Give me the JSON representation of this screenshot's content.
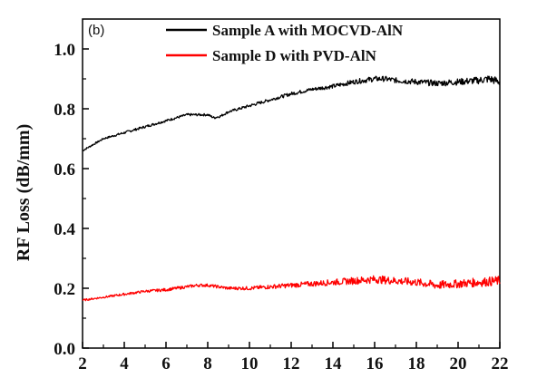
{
  "chart_data": {
    "type": "line",
    "panel_label": "(b)",
    "xlabel": "",
    "ylabel": "RF Loss (dB/mm)",
    "xlim": [
      2,
      22
    ],
    "ylim": [
      0,
      1.1
    ],
    "x_ticks": [
      2,
      4,
      6,
      8,
      10,
      12,
      14,
      16,
      18,
      20,
      22
    ],
    "x_tick_labels": [
      "2",
      "4",
      "6",
      "8",
      "10",
      "12",
      "14",
      "16",
      "18",
      "20",
      "22"
    ],
    "y_ticks": [
      0.0,
      0.2,
      0.4,
      0.6,
      0.8,
      1.0
    ],
    "y_tick_labels": [
      "0.0",
      "0.2",
      "0.4",
      "0.6",
      "0.8",
      "1.0"
    ],
    "legend_position": "top-right",
    "grid": false,
    "series": [
      {
        "name": "Sample A with MOCVD-AlN",
        "color": "#000000",
        "x": [
          2,
          3,
          4,
          5,
          6,
          6.5,
          7,
          7.5,
          8,
          8.3,
          8.6,
          9,
          10,
          11,
          12,
          13,
          14,
          15,
          16,
          16.5,
          17,
          18,
          19,
          20,
          21,
          21.5,
          22
        ],
        "y": [
          0.66,
          0.7,
          0.72,
          0.74,
          0.76,
          0.77,
          0.78,
          0.78,
          0.78,
          0.77,
          0.775,
          0.79,
          0.81,
          0.83,
          0.85,
          0.865,
          0.875,
          0.89,
          0.9,
          0.9,
          0.895,
          0.89,
          0.885,
          0.89,
          0.895,
          0.9,
          0.89
        ],
        "noise": [
          0.003,
          0.003,
          0.004,
          0.004,
          0.004,
          0.004,
          0.004,
          0.004,
          0.004,
          0.004,
          0.004,
          0.004,
          0.005,
          0.005,
          0.006,
          0.006,
          0.007,
          0.008,
          0.009,
          0.009,
          0.009,
          0.01,
          0.01,
          0.011,
          0.012,
          0.014,
          0.014
        ]
      },
      {
        "name": "Sample D with PVD-AlN",
        "color": "#ff0000",
        "x": [
          2,
          3,
          4,
          5,
          6,
          7,
          7.5,
          8,
          9,
          10,
          11,
          12,
          13,
          14,
          15,
          16,
          17,
          18,
          19,
          20,
          21,
          22
        ],
        "y": [
          0.16,
          0.17,
          0.18,
          0.19,
          0.195,
          0.205,
          0.21,
          0.21,
          0.2,
          0.2,
          0.205,
          0.21,
          0.215,
          0.22,
          0.225,
          0.23,
          0.225,
          0.22,
          0.21,
          0.215,
          0.22,
          0.225
        ],
        "noise": [
          0.003,
          0.003,
          0.004,
          0.004,
          0.005,
          0.005,
          0.005,
          0.005,
          0.005,
          0.006,
          0.007,
          0.008,
          0.009,
          0.01,
          0.012,
          0.013,
          0.013,
          0.013,
          0.014,
          0.014,
          0.015,
          0.016
        ]
      }
    ]
  }
}
